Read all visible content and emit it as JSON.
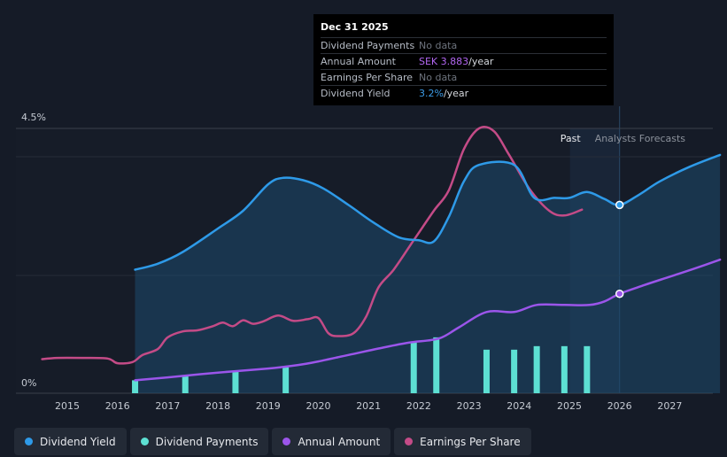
{
  "tooltip": {
    "date": "Dec 31 2025",
    "rows": [
      {
        "label": "Dividend Payments",
        "value": "No data",
        "unit": ""
      },
      {
        "label": "Annual Amount",
        "value": "SEK 3.883",
        "unit": "/year"
      },
      {
        "label": "Earnings Per Share",
        "value": "No data",
        "unit": ""
      },
      {
        "label": "Dividend Yield",
        "value": "3.2%",
        "unit": "/year"
      }
    ]
  },
  "colors": {
    "dividend_yield": "#2e9ae8",
    "dividend_payments": "#5de0d3",
    "annual_amount": "#9b55ea",
    "earnings_per_share": "#c44b87",
    "annual_amount_text": "#b267f2",
    "dividend_yield_text": "#3c9be6"
  },
  "legend": [
    {
      "label": "Dividend Yield",
      "color": "#2e9ae8"
    },
    {
      "label": "Dividend Payments",
      "color": "#5de0d3"
    },
    {
      "label": "Annual Amount",
      "color": "#9b55ea"
    },
    {
      "label": "Earnings Per Share",
      "color": "#c44b87"
    }
  ],
  "chart_data": {
    "type": "line",
    "xlabel": "",
    "ylabel": "",
    "x_ticks": [
      "2015",
      "2016",
      "2017",
      "2018",
      "2019",
      "2020",
      "2021",
      "2022",
      "2023",
      "2024",
      "2025",
      "2026",
      "2027"
    ],
    "x_range": [
      2014.5,
      2028.0
    ],
    "y_range": [
      0,
      4.5
    ],
    "y_tick_labels": {
      "top": "4.5%",
      "bottom": "0%"
    },
    "region_labels": {
      "past": "Past",
      "forecast": "Analysts Forecasts"
    },
    "past_end": 2026.0,
    "series": [
      {
        "name": "Dividend Yield",
        "points": [
          [
            2016.35,
            2.1
          ],
          [
            2016.8,
            2.2
          ],
          [
            2017.3,
            2.4
          ],
          [
            2018.0,
            2.8
          ],
          [
            2018.5,
            3.1
          ],
          [
            2019.0,
            3.55
          ],
          [
            2019.3,
            3.66
          ],
          [
            2019.7,
            3.62
          ],
          [
            2020.1,
            3.48
          ],
          [
            2020.6,
            3.2
          ],
          [
            2021.1,
            2.9
          ],
          [
            2021.6,
            2.65
          ],
          [
            2022.0,
            2.6
          ],
          [
            2022.3,
            2.58
          ],
          [
            2022.6,
            3.0
          ],
          [
            2022.9,
            3.6
          ],
          [
            2023.2,
            3.88
          ],
          [
            2023.9,
            3.88
          ],
          [
            2024.3,
            3.32
          ],
          [
            2024.7,
            3.32
          ],
          [
            2025.0,
            3.32
          ],
          [
            2025.35,
            3.42
          ],
          [
            2025.7,
            3.3
          ],
          [
            2026.0,
            3.2
          ],
          [
            2026.4,
            3.38
          ],
          [
            2026.8,
            3.6
          ],
          [
            2027.4,
            3.85
          ],
          [
            2028.0,
            4.05
          ]
        ]
      },
      {
        "name": "Dividend Payments",
        "type": "bar",
        "points": [
          [
            2016.35,
            0.22
          ],
          [
            2017.35,
            0.29
          ],
          [
            2018.35,
            0.37
          ],
          [
            2019.35,
            0.44
          ],
          [
            2021.9,
            0.88
          ],
          [
            2022.35,
            0.95
          ],
          [
            2023.35,
            0.74
          ],
          [
            2023.9,
            0.74
          ],
          [
            2024.35,
            0.8
          ],
          [
            2024.9,
            0.8
          ],
          [
            2025.35,
            0.8
          ]
        ]
      },
      {
        "name": "Annual Amount",
        "points": [
          [
            2016.35,
            0.22
          ],
          [
            2017.0,
            0.27
          ],
          [
            2018.0,
            0.35
          ],
          [
            2019.0,
            0.42
          ],
          [
            2019.6,
            0.48
          ],
          [
            2020.0,
            0.54
          ],
          [
            2020.6,
            0.65
          ],
          [
            2021.2,
            0.76
          ],
          [
            2021.8,
            0.86
          ],
          [
            2022.4,
            0.93
          ],
          [
            2022.8,
            1.12
          ],
          [
            2023.35,
            1.38
          ],
          [
            2023.9,
            1.38
          ],
          [
            2024.35,
            1.5
          ],
          [
            2024.9,
            1.5
          ],
          [
            2025.4,
            1.5
          ],
          [
            2025.7,
            1.56
          ],
          [
            2026.0,
            1.69
          ],
          [
            2026.5,
            1.84
          ],
          [
            2027.0,
            1.98
          ],
          [
            2027.5,
            2.12
          ],
          [
            2028.0,
            2.27
          ]
        ]
      },
      {
        "name": "Earnings Per Share",
        "points": [
          [
            2014.5,
            0.58
          ],
          [
            2014.8,
            0.6
          ],
          [
            2015.3,
            0.6
          ],
          [
            2015.8,
            0.59
          ],
          [
            2016.0,
            0.51
          ],
          [
            2016.3,
            0.53
          ],
          [
            2016.5,
            0.65
          ],
          [
            2016.8,
            0.75
          ],
          [
            2017.0,
            0.95
          ],
          [
            2017.3,
            1.05
          ],
          [
            2017.6,
            1.07
          ],
          [
            2017.9,
            1.14
          ],
          [
            2018.1,
            1.2
          ],
          [
            2018.3,
            1.14
          ],
          [
            2018.5,
            1.24
          ],
          [
            2018.7,
            1.18
          ],
          [
            2018.9,
            1.22
          ],
          [
            2019.2,
            1.32
          ],
          [
            2019.5,
            1.23
          ],
          [
            2019.8,
            1.26
          ],
          [
            2020.0,
            1.28
          ],
          [
            2020.2,
            1.02
          ],
          [
            2020.4,
            0.97
          ],
          [
            2020.7,
            1.02
          ],
          [
            2020.95,
            1.3
          ],
          [
            2021.2,
            1.8
          ],
          [
            2021.5,
            2.1
          ],
          [
            2021.9,
            2.6
          ],
          [
            2022.3,
            3.1
          ],
          [
            2022.6,
            3.45
          ],
          [
            2022.9,
            4.15
          ],
          [
            2023.2,
            4.5
          ],
          [
            2023.5,
            4.45
          ],
          [
            2023.8,
            4.05
          ],
          [
            2024.2,
            3.48
          ],
          [
            2024.6,
            3.1
          ],
          [
            2024.9,
            3.02
          ],
          [
            2025.25,
            3.12
          ]
        ]
      }
    ],
    "markers": [
      {
        "series": "Dividend Yield",
        "x": 2026.0,
        "y": 3.2
      },
      {
        "series": "Annual Amount",
        "x": 2026.0,
        "y": 1.69
      }
    ]
  }
}
